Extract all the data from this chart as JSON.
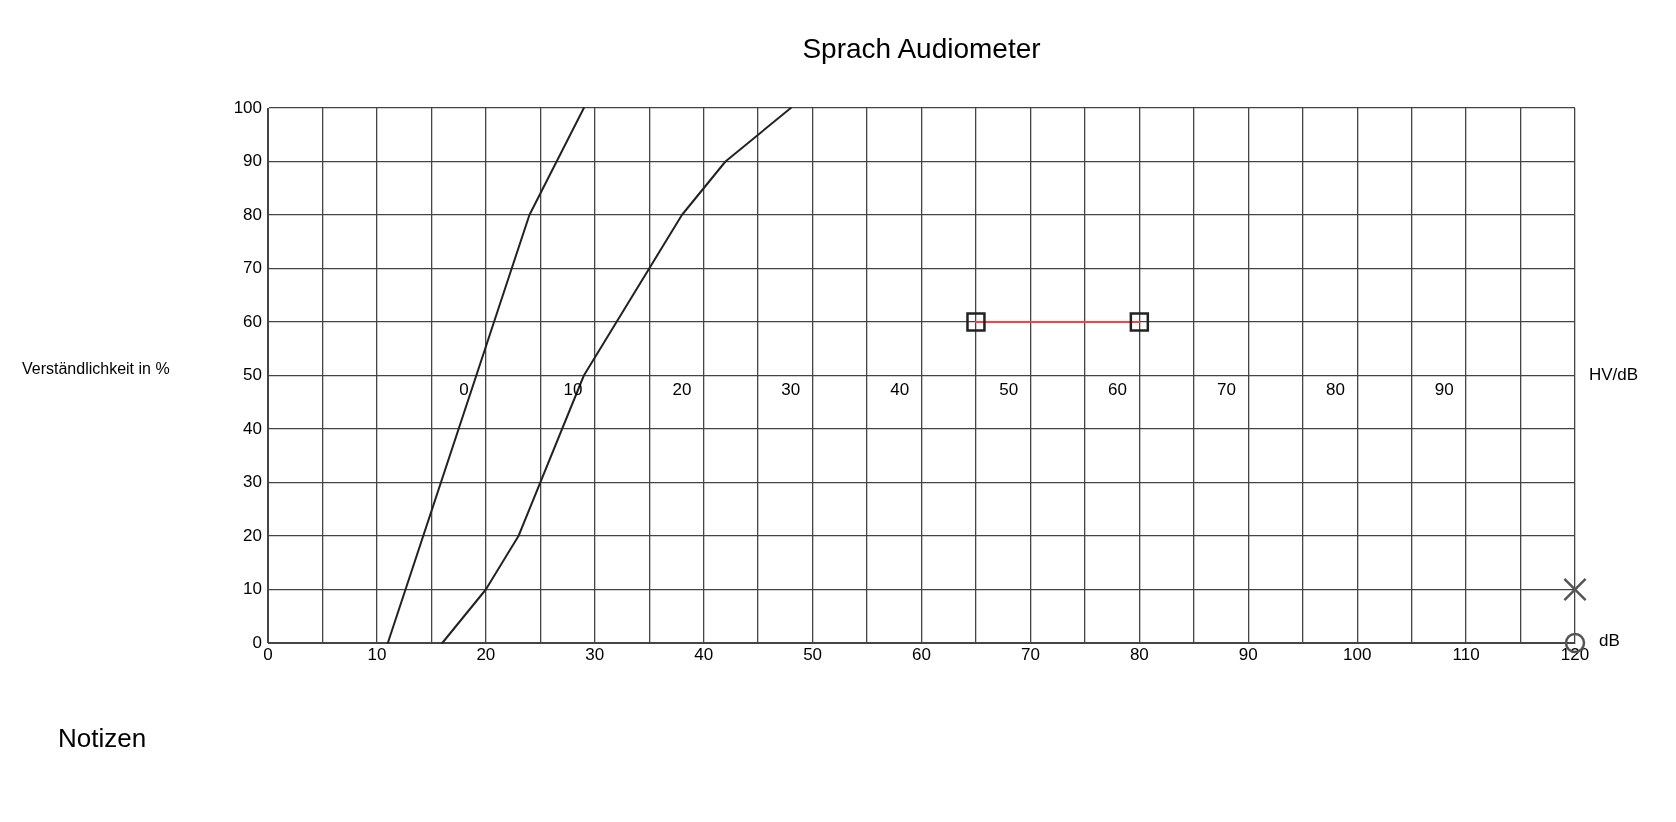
{
  "chart_data": {
    "type": "line",
    "title": "Sprach Audiometer",
    "xlabel": "dB",
    "ylabel": "Verständlichkeit in %",
    "x2label": "HV/dB",
    "annotations": [
      "Notizen"
    ],
    "xlim": [
      0,
      120
    ],
    "xticks": [
      0,
      {
        "value": 5,
        "label": null
      },
      10,
      {
        "value": 15,
        "label": null
      },
      20,
      {
        "value": 25,
        "label": null
      },
      30,
      {
        "value": 35,
        "label": null
      },
      40,
      {
        "value": 45,
        "label": null
      },
      50,
      {
        "value": 55,
        "label": null
      },
      60,
      {
        "value": 65,
        "label": null
      },
      70,
      {
        "value": 75,
        "label": null
      },
      80,
      {
        "value": 85,
        "label": null
      },
      90,
      {
        "value": 95,
        "label": null
      },
      100,
      {
        "value": 105,
        "label": null
      },
      110,
      {
        "value": 115,
        "label": null
      },
      120
    ],
    "ylim": [
      0,
      100
    ],
    "yticks": [
      0,
      10,
      20,
      30,
      40,
      50,
      60,
      70,
      80,
      90,
      100
    ],
    "x2lim": [
      -18,
      102
    ],
    "x2ticks": [
      0,
      10,
      20,
      30,
      40,
      50,
      60,
      70,
      80,
      90
    ],
    "grid": true,
    "legend": false,
    "series": [
      {
        "type": "line",
        "color": "#222222",
        "marker": "none",
        "x": [
          11,
          24,
          29
        ],
        "values": [
          0,
          80,
          100
        ]
      },
      {
        "type": "line",
        "color": "#222222",
        "marker": "none",
        "x": [
          16,
          20,
          23,
          29,
          38,
          42,
          48
        ],
        "values": [
          0,
          10,
          20,
          50,
          80,
          90,
          100
        ]
      },
      {
        "type": "scatter",
        "color": "#222222",
        "marker": "square",
        "x": [
          65,
          80
        ],
        "values": [
          60,
          60
        ]
      },
      {
        "type": "line",
        "color": "#ff4040",
        "marker": "none",
        "x": [
          65,
          80
        ],
        "values": [
          60,
          60
        ]
      },
      {
        "type": "scatter",
        "color": "#555555",
        "marker": "cross",
        "x": [
          120
        ],
        "values": [
          10
        ]
      },
      {
        "type": "scatter",
        "color": "#555555",
        "marker": "circle",
        "x": [
          120
        ],
        "values": [
          0
        ]
      }
    ]
  }
}
